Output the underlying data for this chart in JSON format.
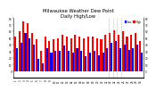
{
  "title": "Milwaukee Weather Dew Point",
  "subtitle": "Daily High/Low",
  "title_fontsize": 3.8,
  "bar_width": 0.42,
  "ylim": [
    -10,
    80
  ],
  "yticks": [
    0,
    10,
    20,
    30,
    40,
    50,
    60,
    70,
    80
  ],
  "background_color": "#ffffff",
  "high_color": "#ff0000",
  "low_color": "#0000ff",
  "vline_positions": [
    21.5,
    22.5,
    23.5,
    24.5
  ],
  "categories": [
    "1",
    "2",
    "3",
    "4",
    "5",
    "6",
    "7",
    "8",
    "9",
    "10",
    "11",
    "12",
    "13",
    "14",
    "15",
    "16",
    "17",
    "18",
    "19",
    "20",
    "21",
    "22",
    "23",
    "24",
    "25",
    "26",
    "27",
    "28",
    "29",
    "30"
  ],
  "high_values": [
    52,
    60,
    75,
    72,
    58,
    48,
    30,
    52,
    46,
    48,
    50,
    55,
    52,
    50,
    55,
    52,
    50,
    52,
    52,
    50,
    48,
    55,
    58,
    62,
    55,
    60,
    52,
    55,
    58,
    45
  ],
  "low_values": [
    35,
    42,
    58,
    50,
    40,
    18,
    12,
    35,
    28,
    30,
    30,
    38,
    30,
    28,
    35,
    30,
    22,
    28,
    30,
    24,
    28,
    35,
    42,
    45,
    35,
    40,
    32,
    35,
    40,
    28
  ]
}
